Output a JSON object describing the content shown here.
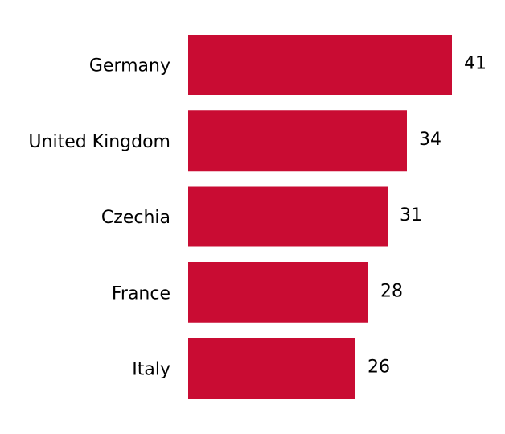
{
  "chart_data": {
    "type": "bar",
    "orientation": "horizontal",
    "categories": [
      "Germany",
      "United Kingdom",
      "Czechia",
      "France",
      "Italy"
    ],
    "values": [
      41,
      34,
      31,
      28,
      26
    ],
    "color": "#c90c33"
  }
}
